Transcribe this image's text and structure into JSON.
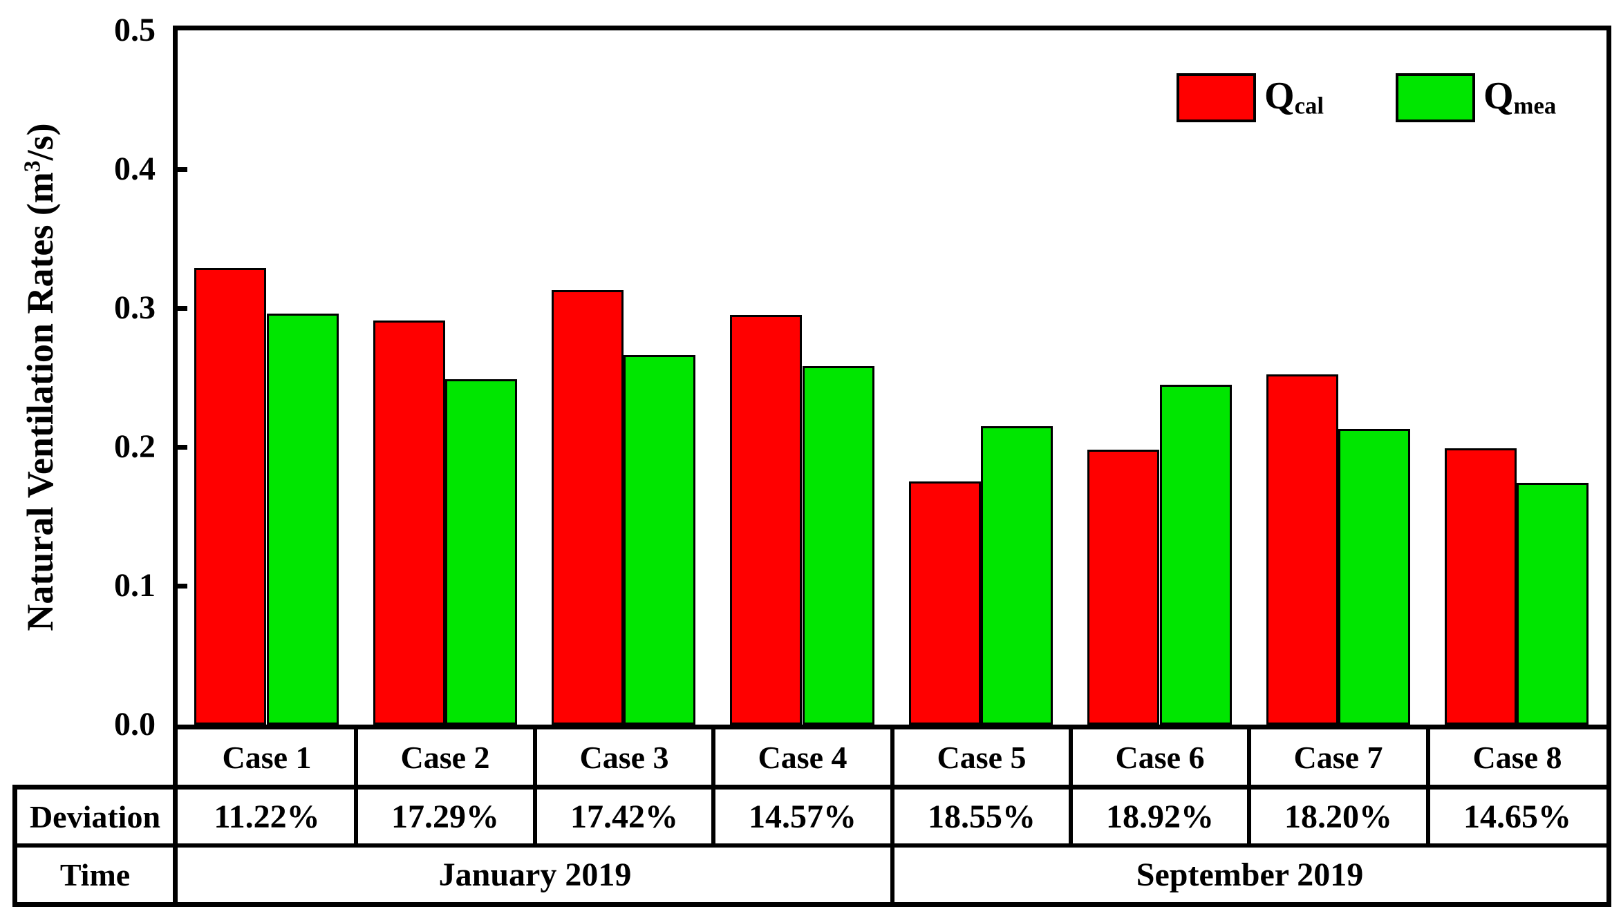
{
  "figure": {
    "background": "#ffffff",
    "axis_color": "#000000"
  },
  "chart_data": {
    "type": "bar",
    "title": "",
    "ylabel": "Natural Ventilation Rates (m³/s)",
    "ylabel_parts": {
      "prefix": "Natural Ventilation Rates (m",
      "sup": "3",
      "suffix": "/s)"
    },
    "xlabel": "",
    "ylim": [
      0.0,
      0.5
    ],
    "ytick_values": [
      0.0,
      0.1,
      0.2,
      0.3,
      0.4,
      0.5
    ],
    "ytick_labels": [
      "0.0",
      "0.1",
      "0.2",
      "0.3",
      "0.4",
      "0.5"
    ],
    "grid": false,
    "legend_position": "top-right-inside",
    "categories": [
      "Case 1",
      "Case 2",
      "Case 3",
      "Case 4",
      "Case 5",
      "Case 6",
      "Case 7",
      "Case 8"
    ],
    "series": [
      {
        "name": "Qcal",
        "label_main": "Q",
        "label_sub": "cal",
        "color": "#ff0000",
        "border_color": "#000000",
        "values": [
          0.329,
          0.291,
          0.313,
          0.295,
          0.175,
          0.198,
          0.252,
          0.199
        ]
      },
      {
        "name": "Qmea",
        "label_main": "Q",
        "label_sub": "mea",
        "color": "#00e600",
        "border_color": "#000000",
        "values": [
          0.296,
          0.249,
          0.266,
          0.258,
          0.215,
          0.245,
          0.213,
          0.174
        ]
      }
    ],
    "table": {
      "row_headers": {
        "deviation": "Deviation",
        "time": "Time"
      },
      "deviations": [
        "11.22%",
        "17.29%",
        "17.42%",
        "14.57%",
        "18.55%",
        "18.92%",
        "18.20%",
        "14.65%"
      ],
      "time_groups": [
        {
          "label": "January 2019",
          "start": 0,
          "count": 4
        },
        {
          "label": "September 2019",
          "start": 4,
          "count": 4
        }
      ]
    }
  }
}
